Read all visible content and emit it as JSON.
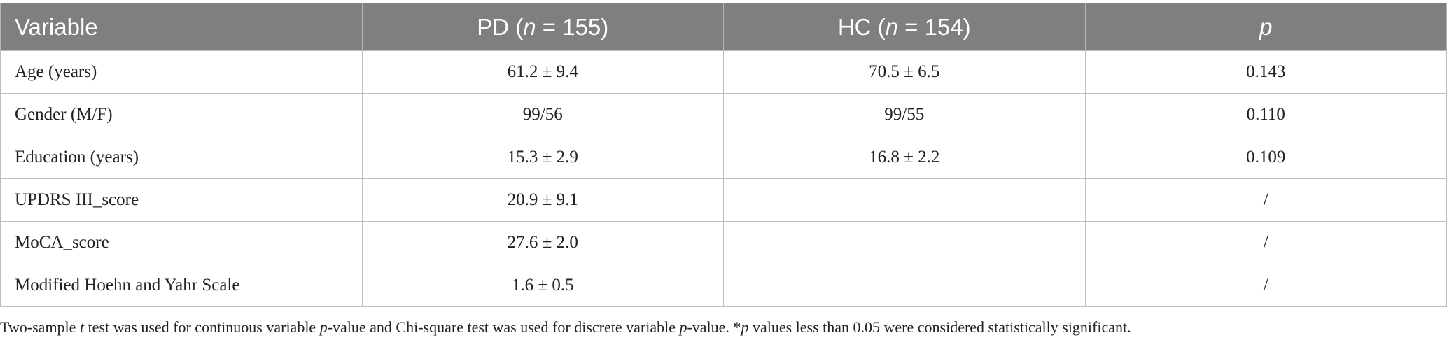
{
  "table": {
    "header": [
      [
        {
          "text": "Variable"
        }
      ],
      [
        {
          "text": "PD ("
        },
        {
          "text": "n",
          "style": "italic"
        },
        {
          "text": " = 155)"
        }
      ],
      [
        {
          "text": "HC ("
        },
        {
          "text": "n",
          "style": "italic"
        },
        {
          "text": " = 154)"
        }
      ],
      [
        {
          "text": "p",
          "style": "italic"
        }
      ]
    ],
    "rows": [
      [
        "Age (years)",
        "61.2 ± 9.4",
        "70.5 ± 6.5",
        "0.143"
      ],
      [
        "Gender (M/F)",
        "99/56",
        "99/55",
        "0.110"
      ],
      [
        "Education (years)",
        "15.3 ± 2.9",
        "16.8 ± 2.2",
        "0.109"
      ],
      [
        "UPDRS III_score",
        "20.9 ± 9.1",
        null,
        "/"
      ],
      [
        "MoCA_score",
        "27.6 ± 2.0",
        null,
        "/"
      ],
      [
        "Modified Hoehn and Yahr Scale",
        "1.6 ± 0.5",
        null,
        "/"
      ]
    ],
    "footnote": [
      {
        "text": "Two-sample "
      },
      {
        "text": "t",
        "style": "italic"
      },
      {
        "text": " test was used for continuous variable "
      },
      {
        "text": "p",
        "style": "italic"
      },
      {
        "text": "-value and Chi-square test was used for discrete variable "
      },
      {
        "text": "p",
        "style": "italic"
      },
      {
        "text": "-value. *"
      },
      {
        "text": "p",
        "style": "italic"
      },
      {
        "text": " values less than 0.05 were considered statistically significant."
      }
    ]
  }
}
